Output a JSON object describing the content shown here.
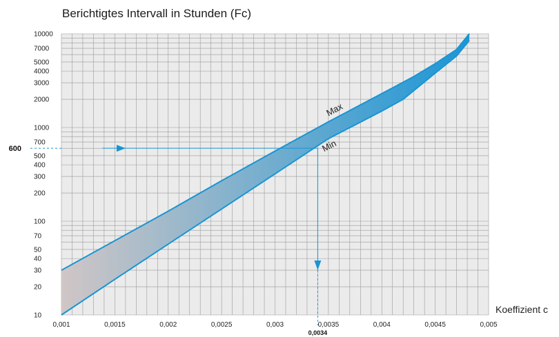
{
  "chart_data": {
    "type": "area",
    "title": "Berichtigtes Intervall in Stunden (Fc)",
    "xlabel": "Koeffizient c",
    "ylabel": "",
    "xlim": [
      0.001,
      0.005
    ],
    "ylim": [
      10,
      10000
    ],
    "y_scale": "log",
    "grid": true,
    "x_ticks": [
      {
        "value": 0.001,
        "label": "0,001"
      },
      {
        "value": 0.0015,
        "label": "0,0015"
      },
      {
        "value": 0.002,
        "label": "0,002"
      },
      {
        "value": 0.0025,
        "label": "0,0025"
      },
      {
        "value": 0.003,
        "label": "0,003"
      },
      {
        "value": 0.0035,
        "label": "0,0035"
      },
      {
        "value": 0.004,
        "label": "0,004"
      },
      {
        "value": 0.0045,
        "label": "0,0045"
      },
      {
        "value": 0.005,
        "label": "0,005"
      }
    ],
    "y_ticks": [
      {
        "value": 10,
        "label": "10"
      },
      {
        "value": 20,
        "label": "20"
      },
      {
        "value": 30,
        "label": "30"
      },
      {
        "value": 40,
        "label": "40"
      },
      {
        "value": 50,
        "label": "50"
      },
      {
        "value": 70,
        "label": "70"
      },
      {
        "value": 100,
        "label": "100"
      },
      {
        "value": 200,
        "label": "200"
      },
      {
        "value": 300,
        "label": "300"
      },
      {
        "value": 400,
        "label": "400"
      },
      {
        "value": 500,
        "label": "500"
      },
      {
        "value": 700,
        "label": "700"
      },
      {
        "value": 1000,
        "label": "1000"
      },
      {
        "value": 2000,
        "label": "2000"
      },
      {
        "value": 3000,
        "label": "3000"
      },
      {
        "value": 4000,
        "label": "4000"
      },
      {
        "value": 5000,
        "label": "5000"
      },
      {
        "value": 7000,
        "label": "7000"
      },
      {
        "value": 10000,
        "label": "10000"
      }
    ],
    "series": [
      {
        "name": "Max",
        "x": [
          0.001,
          0.0015,
          0.002,
          0.0025,
          0.003,
          0.0035,
          0.004,
          0.0043,
          0.0045,
          0.0047,
          0.00482
        ],
        "y": [
          30,
          62,
          128,
          270,
          560,
          1150,
          2300,
          3500,
          4800,
          6800,
          10000
        ]
      },
      {
        "name": "Min",
        "x": [
          0.001,
          0.0015,
          0.002,
          0.0025,
          0.003,
          0.0035,
          0.004,
          0.0042,
          0.0045,
          0.0047,
          0.00482
        ],
        "y": [
          10,
          24,
          57,
          135,
          320,
          760,
          1500,
          2000,
          3800,
          5800,
          8500
        ]
      }
    ],
    "annotations": [
      {
        "type": "y-marker",
        "value": 600,
        "label": "600"
      },
      {
        "type": "x-marker",
        "value": 0.0034,
        "label": "0,0034"
      }
    ],
    "colors": {
      "background": "#ebebeb",
      "grid": "#9a9a9a",
      "band_start": "#d0c6c6",
      "band_end": "#1b96d6",
      "line": "#1994d3",
      "marker": "#1994d3"
    }
  }
}
